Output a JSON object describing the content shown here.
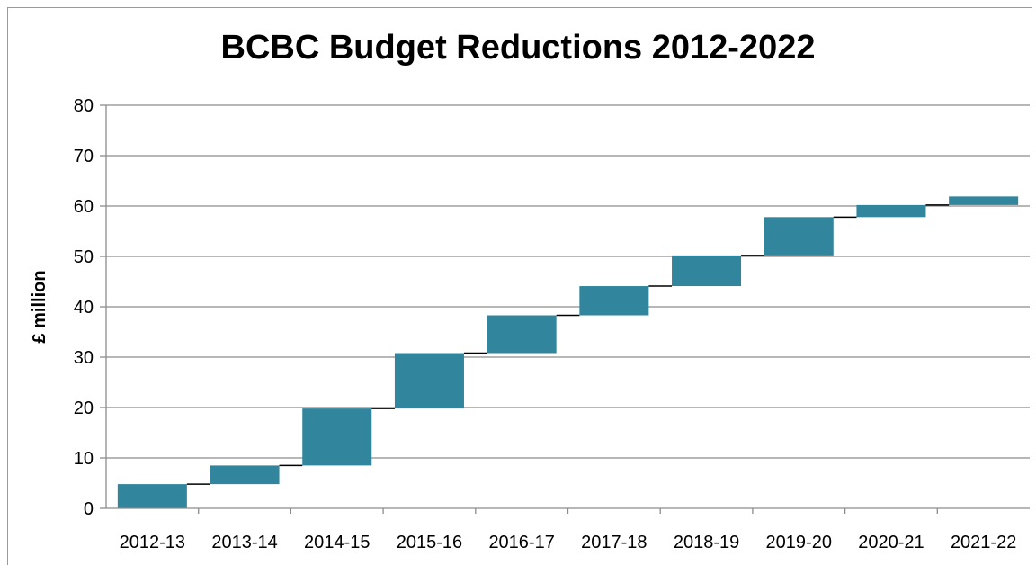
{
  "chart_data": {
    "type": "bar",
    "subtype": "waterfall",
    "title": "BCBC Budget Reductions 2012-2022",
    "xlabel": "",
    "ylabel": "£ million",
    "categories": [
      "2012-13",
      "2013-14",
      "2014-15",
      "2015-16",
      "2016-17",
      "2017-18",
      "2018-19",
      "2019-20",
      "2020-21",
      "2021-22"
    ],
    "series": [
      {
        "values": [
          4.8,
          3.7,
          11.3,
          11.0,
          7.5,
          5.8,
          6.1,
          7.6,
          2.4,
          1.7
        ],
        "cumulative": [
          4.8,
          8.5,
          19.8,
          30.8,
          38.3,
          44.1,
          50.2,
          57.8,
          60.2,
          61.9
        ]
      }
    ],
    "ylim": [
      0,
      80
    ],
    "yticks": [
      0,
      10,
      20,
      30,
      40,
      50,
      60,
      70,
      80
    ],
    "grid": true,
    "legend": "none",
    "colors": {
      "bar": "#31859c",
      "gridline": "#8c8c8c",
      "connector": "#000000"
    }
  }
}
